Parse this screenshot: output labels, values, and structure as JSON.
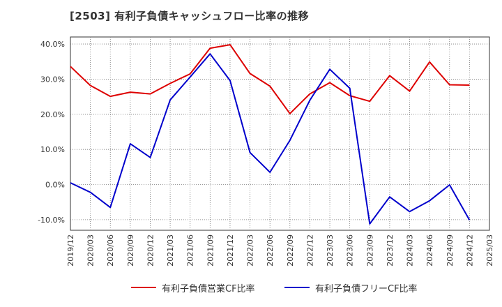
{
  "title": "[2503]  有利子負債キャッシュフロー比率の推移",
  "chart_data": {
    "type": "line",
    "x": [
      "2019/12",
      "2020/03",
      "2020/06",
      "2020/09",
      "2020/12",
      "2021/03",
      "2021/06",
      "2021/09",
      "2021/12",
      "2022/03",
      "2022/06",
      "2022/09",
      "2022/12",
      "2023/03",
      "2023/06",
      "2023/09",
      "2023/12",
      "2024/03",
      "2024/06",
      "2024/09",
      "2024/12",
      "2025/03"
    ],
    "ylim": [
      -13,
      42
    ],
    "yticks": [
      -10,
      0,
      10,
      20,
      30,
      40
    ],
    "ytick_labels": [
      "-10.0%",
      "0.0%",
      "10.0%",
      "20.0%",
      "30.0%",
      "40.0%"
    ],
    "grid": true,
    "legend_position": "bottom",
    "series": [
      {
        "name": "有利子負債営業CF比率",
        "color": "#dd0000",
        "values": [
          33.6,
          28.2,
          25.1,
          26.3,
          25.8,
          28.8,
          31.5,
          38.8,
          39.8,
          31.6,
          28.0,
          20.2,
          25.8,
          29.0,
          25.3,
          23.7,
          31.0,
          26.6,
          34.9,
          28.4,
          28.3,
          null
        ]
      },
      {
        "name": "有利子負債フリーCF比率",
        "color": "#0000cc",
        "values": [
          0.5,
          -2.2,
          -6.5,
          11.6,
          7.7,
          24.1,
          30.6,
          37.2,
          29.6,
          9.1,
          3.5,
          12.6,
          24.0,
          32.8,
          27.4,
          -11.2,
          -3.5,
          -7.7,
          -4.6,
          -0.1,
          -10.1,
          null
        ]
      }
    ]
  }
}
